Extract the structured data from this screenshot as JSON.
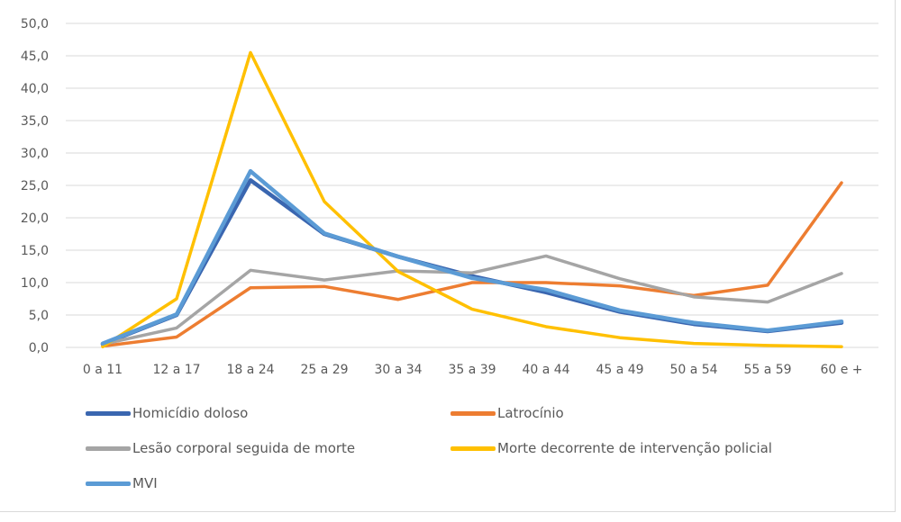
{
  "chart_data": {
    "type": "line",
    "title": "",
    "xlabel": "",
    "ylabel": "",
    "ylim": [
      0,
      50
    ],
    "yticks": [
      "0,0",
      "5,0",
      "10,0",
      "15,0",
      "20,0",
      "25,0",
      "30,0",
      "35,0",
      "40,0",
      "45,0",
      "50,0"
    ],
    "grid": true,
    "legend_position": "bottom",
    "categories": [
      "0 a 11",
      "12 a 17",
      "18 a 24",
      "25 a 29",
      "30 a 34",
      "35 a 39",
      "40 a 44",
      "45 a 49",
      "50 a 54",
      "55 a 59",
      "60 e +"
    ],
    "series": [
      {
        "name": "Homicídio doloso",
        "color": "#3a66b0",
        "values": [
          0.5,
          5.0,
          25.8,
          17.5,
          14.0,
          11.0,
          8.5,
          5.5,
          3.6,
          2.5,
          3.8
        ]
      },
      {
        "name": "Latrocínio",
        "color": "#ed7d31",
        "values": [
          0.2,
          1.6,
          9.2,
          9.4,
          7.4,
          10.0,
          10.0,
          9.5,
          8.0,
          9.6,
          25.4
        ]
      },
      {
        "name": "Lesão corporal seguida de morte",
        "color": "#a5a5a5",
        "values": [
          0.5,
          3.0,
          11.9,
          10.4,
          11.8,
          11.5,
          14.1,
          10.6,
          7.8,
          7.0,
          11.4
        ]
      },
      {
        "name": "Morte decorrente de intervenção policial",
        "color": "#ffc000",
        "values": [
          0.1,
          7.5,
          45.5,
          22.5,
          11.7,
          5.9,
          3.2,
          1.5,
          0.6,
          0.3,
          0.1
        ]
      },
      {
        "name": "MVI",
        "color": "#5b9bd5",
        "values": [
          0.6,
          5.1,
          27.2,
          17.6,
          14.0,
          10.7,
          8.9,
          5.7,
          3.8,
          2.6,
          4.0
        ]
      }
    ]
  }
}
